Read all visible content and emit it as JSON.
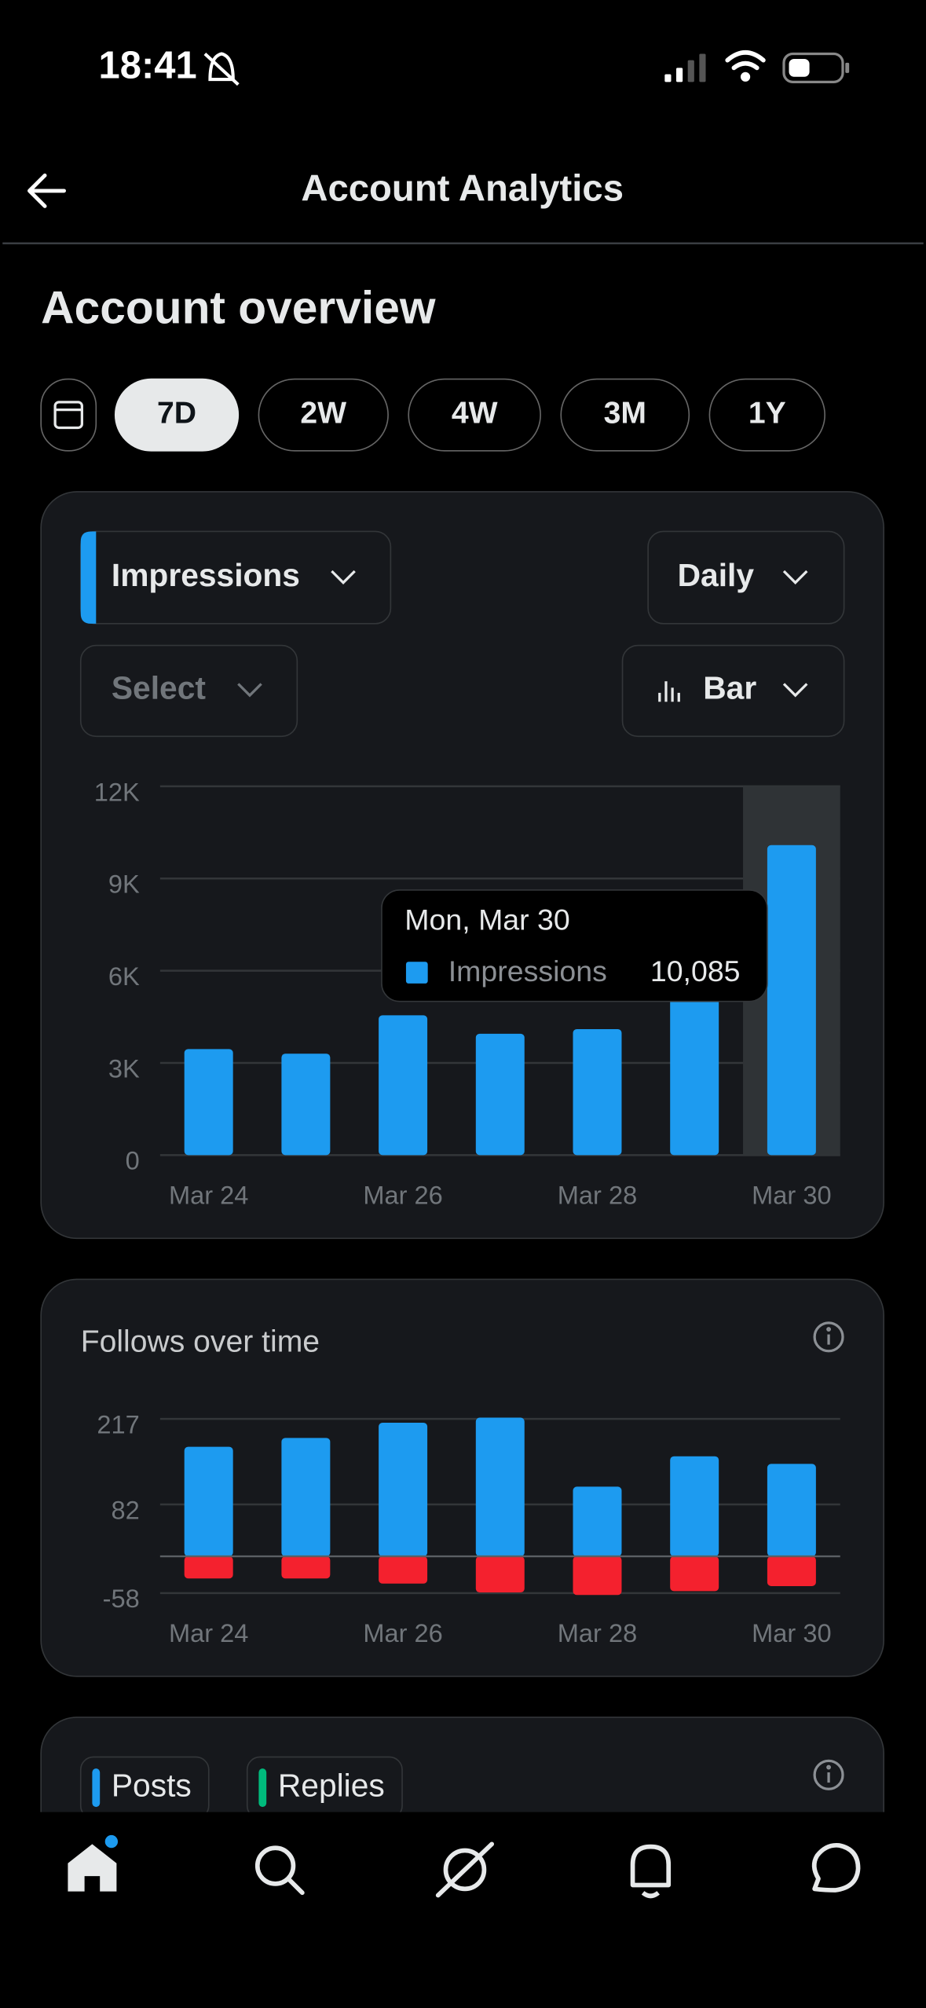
{
  "status_bar": {
    "time": "18:41"
  },
  "header": {
    "title": "Account Analytics"
  },
  "overview": {
    "title": "Account overview",
    "ranges": [
      "7D",
      "2W",
      "4W",
      "3M",
      "1Y"
    ],
    "selected_range": "7D"
  },
  "controls": {
    "interval": "Daily",
    "compare": "Select",
    "chart_style": "Bar"
  },
  "chart_data": [
    {
      "type": "bar",
      "categories": [
        "Mar 24",
        null,
        "Mar 26",
        null,
        "Mar 28",
        null,
        "Mar 30"
      ],
      "series": [
        {
          "name": "Impressions",
          "color": "#1d9bf0",
          "values": [
            3450,
            3300,
            4550,
            3950,
            4100,
            5200,
            10085
          ],
          "value_labels": [
            null,
            null,
            null,
            null,
            null,
            null,
            "10,085"
          ]
        }
      ],
      "tooltip": "Mon, Mar 30",
      "ylim": [
        0,
        12000
      ],
      "yticks": [
        0,
        {
          "value": 3000,
          "label": "3K"
        },
        {
          "value": 6000,
          "label": "6K"
        },
        {
          "value": 9000,
          "label": "9K"
        },
        {
          "value": 12000,
          "label": "12K"
        }
      ],
      "grid": true
    },
    {
      "type": "stacked_bar",
      "title": "Follows over time",
      "categories": [
        "Mar 24",
        null,
        "Mar 26",
        null,
        "Mar 28",
        null,
        "Mar 30"
      ],
      "series": [
        {
          "color": "#1d9bf0",
          "values": [
            173,
            187,
            211,
            219,
            110,
            158,
            146
          ]
        },
        {
          "color": "#f4212e",
          "values": [
            -35,
            -35,
            -43,
            -57,
            -61,
            -55,
            -47
          ]
        }
      ],
      "ylim": [
        -58,
        217
      ],
      "yticks": [
        -58,
        82,
        217
      ],
      "grid": true
    }
  ],
  "posts_card": {
    "legend": [
      {
        "label": "Posts",
        "color": "#1d9bf0"
      },
      {
        "label": "Replies",
        "color": "#00ba7c"
      }
    ]
  }
}
